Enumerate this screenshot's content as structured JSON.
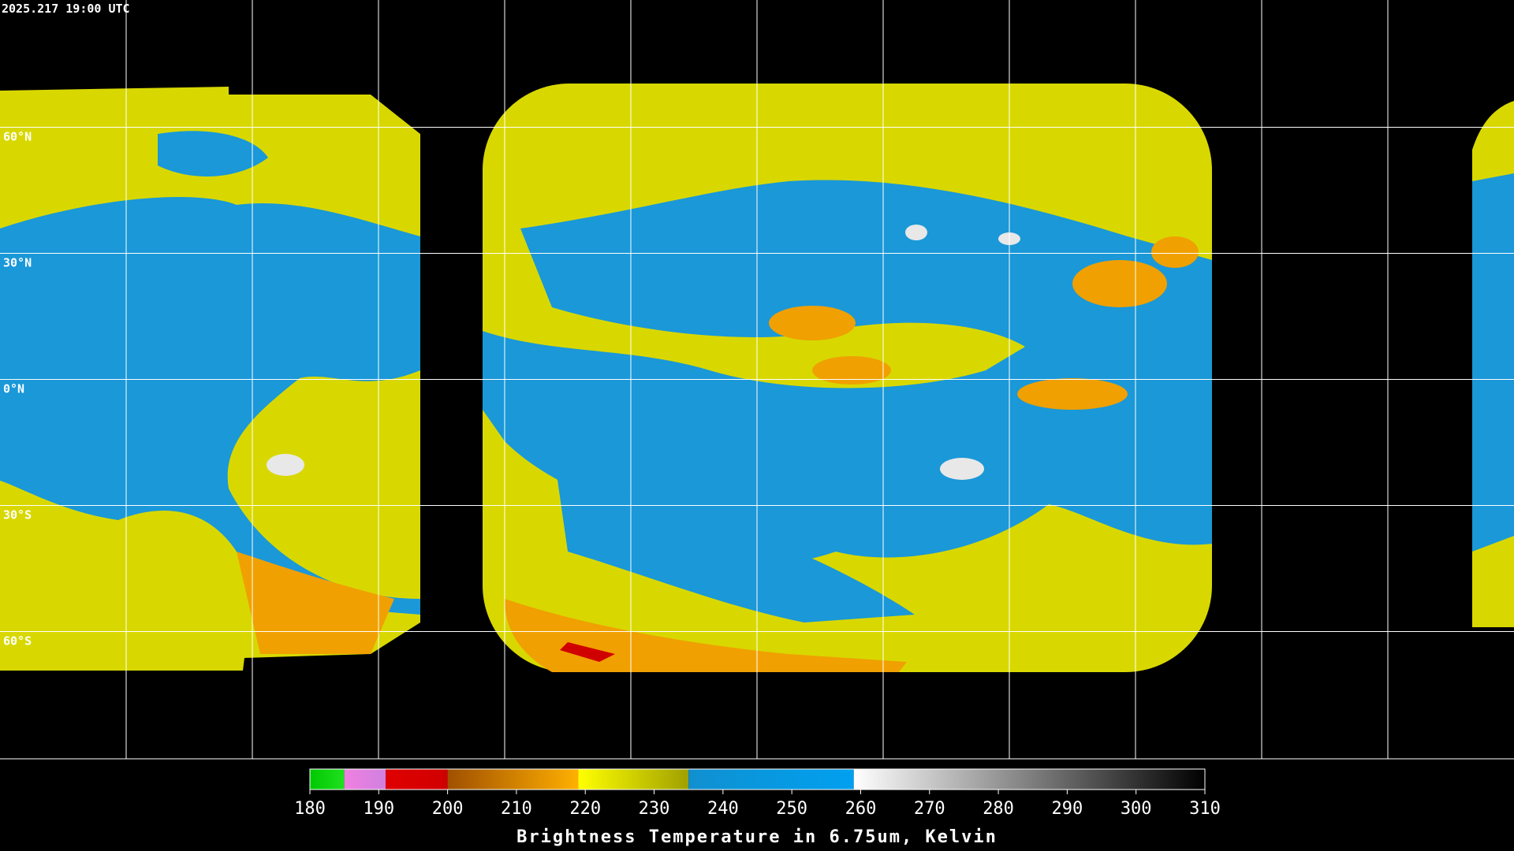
{
  "timestamp": "2025.217 19:00 UTC",
  "lat_grid": [
    {
      "value": 60,
      "label": "60°N"
    },
    {
      "value": 30,
      "label": "30°N"
    },
    {
      "value": 0,
      "label": "0°N"
    },
    {
      "value": -30,
      "label": "30°S"
    },
    {
      "value": -60,
      "label": "60°S"
    }
  ],
  "colorbar": {
    "title": "Brightness Temperature in 6.75um, Kelvin",
    "range": [
      180,
      310
    ],
    "ticks": [
      180,
      190,
      200,
      210,
      220,
      230,
      240,
      250,
      260,
      270,
      280,
      290,
      300,
      310
    ],
    "segments": [
      {
        "from": 180,
        "to": 185,
        "colors": [
          "#00c800",
          "#20e020"
        ]
      },
      {
        "from": 185,
        "to": 191,
        "colors": [
          "#f080e0",
          "#d080e0"
        ]
      },
      {
        "from": 191,
        "to": 200,
        "colors": [
          "#e00000",
          "#d00000"
        ]
      },
      {
        "from": 200,
        "to": 219,
        "colors": [
          "#a05000",
          "#ffb000"
        ]
      },
      {
        "from": 219,
        "to": 235,
        "colors": [
          "#ffff00",
          "#a0a000"
        ]
      },
      {
        "from": 235,
        "to": 259,
        "colors": [
          "#1090d0",
          "#00a0f0"
        ]
      },
      {
        "from": 259,
        "to": 310,
        "colors": [
          "#ffffff",
          "#000000"
        ]
      }
    ]
  }
}
